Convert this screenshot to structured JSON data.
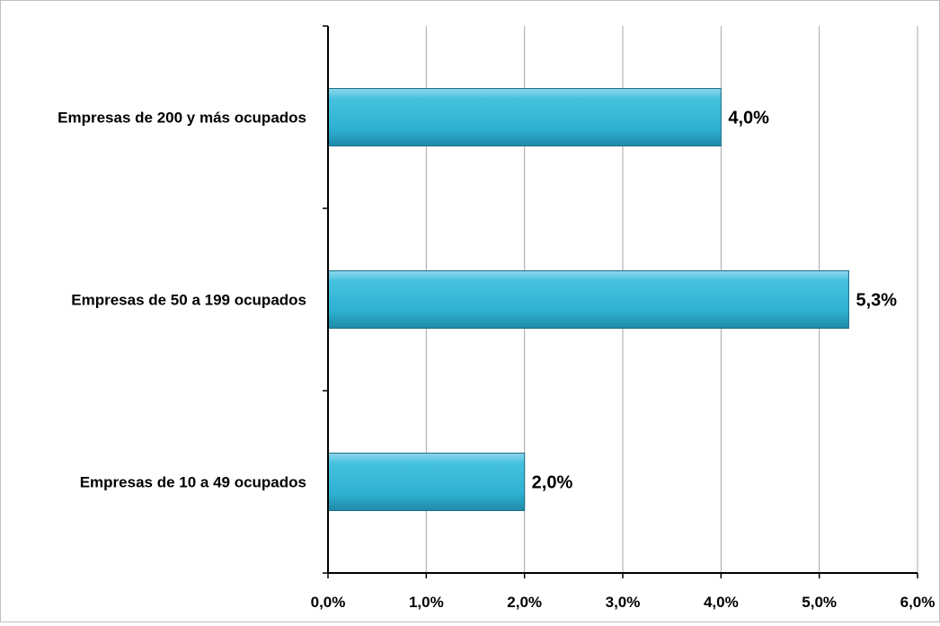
{
  "chart_data": {
    "type": "bar",
    "orientation": "horizontal",
    "categories": [
      "Empresas de 200 y más ocupados",
      "Empresas de 50 a 199 ocupados",
      "Empresas de 10 a 49 ocupados"
    ],
    "values": [
      4.0,
      5.3,
      2.0
    ],
    "data_labels": [
      "4,0%",
      "5,3%",
      "2,0%"
    ],
    "xlim": [
      0,
      6
    ],
    "x_ticks": [
      0,
      1,
      2,
      3,
      4,
      5,
      6
    ],
    "x_tick_labels": [
      "0,0%",
      "1,0%",
      "2,0%",
      "3,0%",
      "4,0%",
      "5,0%",
      "6,0%"
    ],
    "grid": "vertical",
    "legend": "none",
    "bar_color": "#31b8d8"
  }
}
